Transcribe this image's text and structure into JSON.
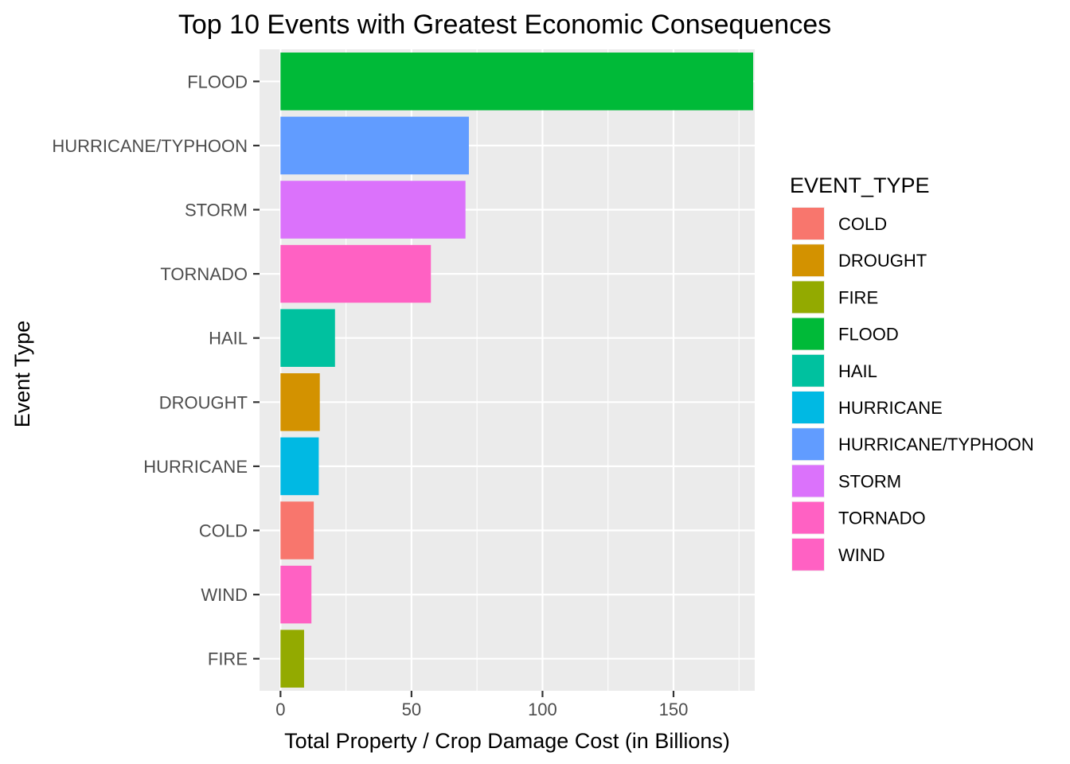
{
  "chart_data": {
    "type": "bar",
    "orientation": "horizontal",
    "title": "Top 10 Events with Greatest Economic Consequences",
    "xlabel": "Total Property / Crop Damage Cost (in Billions)",
    "ylabel": "Event Type",
    "xlim": [
      -8,
      181
    ],
    "x_ticks": [
      0,
      50,
      100,
      150
    ],
    "grid": true,
    "categories": [
      "FLOOD",
      "HURRICANE/TYPHOON",
      "STORM",
      "TORNADO",
      "HAIL",
      "DROUGHT",
      "HURRICANE",
      "COLD",
      "WIND",
      "FIRE"
    ],
    "values": [
      180.4,
      71.9,
      70.6,
      57.4,
      20.8,
      15.0,
      14.6,
      12.7,
      11.8,
      9.0
    ],
    "legend": {
      "title": "EVENT_TYPE",
      "placement": "right",
      "entries": [
        "COLD",
        "DROUGHT",
        "FIRE",
        "FLOOD",
        "HAIL",
        "HURRICANE",
        "HURRICANE/TYPHOON",
        "STORM",
        "TORNADO",
        "WIND"
      ]
    },
    "colors": {
      "COLD": "#F8766D",
      "DROUGHT": "#D39200",
      "FIRE": "#93AA00",
      "FLOOD": "#00BA38",
      "HAIL": "#00C19F",
      "HURRICANE": "#00B9E3",
      "HURRICANE/TYPHOON": "#619CFF",
      "STORM": "#DB72FB",
      "TORNADO": "#FF61C3",
      "WIND": "#FF61C3"
    }
  }
}
